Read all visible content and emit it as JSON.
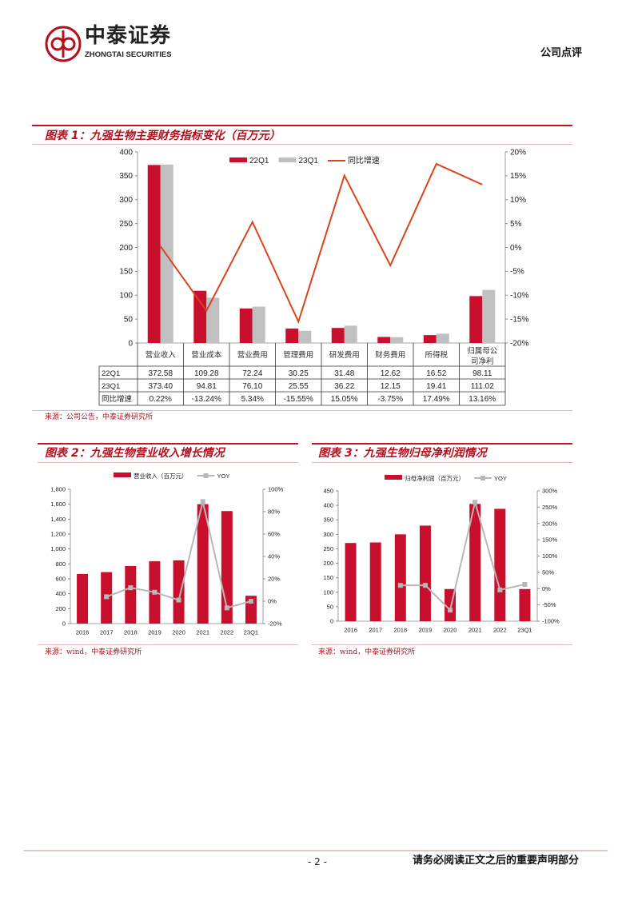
{
  "header": {
    "logo_cn": "中泰证券",
    "logo_en": "ZHONGTAI SECURITIES",
    "doc_type": "公司点评"
  },
  "footer": {
    "page": "- 2 -",
    "disclaimer": "请务必阅读正文之后的重要声明部分"
  },
  "colors": {
    "red": "#c8102e",
    "grey": "#c0c0c0",
    "line": "#d9441a"
  },
  "figure1": {
    "title": "图表 1：九强生物主要财务指标变化（百万元）",
    "source": "来源：公司公告，中泰证券研究所"
  },
  "figure2": {
    "title": "图表 2：九强生物营业收入增长情况",
    "source": "来源：wind，中泰证券研究所"
  },
  "figure3": {
    "title": "图表 3：九强生物归母净利润情况",
    "source": "来源：wind，中泰证券研究所"
  },
  "chart_data": [
    {
      "type": "bar",
      "title": "九强生物主要财务指标变化（百万元）",
      "categories": [
        "营业收入",
        "营业成本",
        "营业费用",
        "管理费用",
        "研发费用",
        "财务费用",
        "所得税",
        "归属母公司净利"
      ],
      "series": [
        {
          "name": "22Q1",
          "values": [
            372.58,
            109.28,
            72.24,
            30.25,
            31.48,
            12.62,
            16.52,
            98.11
          ],
          "labels": [
            "372.58",
            "109.28",
            "72.24",
            "30.25",
            "31.48",
            "12.62",
            "16.52",
            "98.11"
          ]
        },
        {
          "name": "23Q1",
          "values": [
            373.4,
            94.81,
            76.1,
            25.55,
            36.22,
            12.15,
            19.41,
            111.02
          ],
          "labels": [
            "373.40",
            "94.81",
            "76.10",
            "25.55",
            "36.22",
            "12.15",
            "19.41",
            "111.02"
          ]
        },
        {
          "name": "同比增速",
          "axis": "right",
          "values": [
            0.22,
            -13.24,
            5.34,
            -15.55,
            15.05,
            -3.75,
            17.49,
            13.16
          ],
          "labels": [
            "0.22%",
            "-13.24%",
            "5.34%",
            "-15.55%",
            "15.05%",
            "-3.75%",
            "17.49%",
            "13.16%"
          ]
        }
      ],
      "ylim": [
        0,
        400
      ],
      "yticks": [
        "0",
        "50",
        "100",
        "150",
        "200",
        "250",
        "300",
        "350",
        "400"
      ],
      "y2lim": [
        -20,
        20
      ],
      "y2ticks": [
        "-20%",
        "-15%",
        "-10%",
        "-5%",
        "0%",
        "5%",
        "10%",
        "15%",
        "20%"
      ],
      "legend": "top-center"
    },
    {
      "type": "bar",
      "title": "九强生物营业收入增长情况",
      "categories": [
        "2016",
        "2017",
        "2018",
        "2019",
        "2020",
        "2021",
        "2022",
        "23Q1"
      ],
      "series": [
        {
          "name": "营业收入（百万元）",
          "values": [
            665,
            690,
            772,
            835,
            848,
            1600,
            1508,
            373
          ]
        },
        {
          "name": "YOY",
          "axis": "right",
          "values": [
            null,
            4,
            12,
            8,
            1,
            89,
            -6,
            0
          ]
        }
      ],
      "ylim": [
        0,
        1800
      ],
      "yticks": [
        "0",
        "200",
        "400",
        "600",
        "800",
        "1,000",
        "1,200",
        "1,400",
        "1,600",
        "1,800"
      ],
      "y2lim": [
        -20,
        100
      ],
      "y2ticks": [
        "-20%",
        "0%",
        "20%",
        "40%",
        "60%",
        "80%",
        "100%"
      ],
      "legend": "top-center"
    },
    {
      "type": "bar",
      "title": "九强生物归母净利润情况",
      "categories": [
        "2016",
        "2017",
        "2018",
        "2019",
        "2020",
        "2021",
        "2022",
        "23Q1"
      ],
      "series": [
        {
          "name": "归母净利润（百万元）",
          "values": [
            270,
            272,
            300,
            330,
            111,
            405,
            388,
            111
          ]
        },
        {
          "name": "YOY",
          "axis": "right",
          "values": [
            null,
            null,
            10,
            10,
            -66,
            265,
            -4,
            13
          ]
        }
      ],
      "ylim": [
        0,
        450
      ],
      "yticks": [
        "0",
        "50",
        "100",
        "150",
        "200",
        "250",
        "300",
        "350",
        "400",
        "450"
      ],
      "y2lim": [
        -100,
        300
      ],
      "y2ticks": [
        "-100%",
        "-50%",
        "0%",
        "50%",
        "100%",
        "150%",
        "200%",
        "250%",
        "300%"
      ],
      "legend": "top-center"
    }
  ]
}
